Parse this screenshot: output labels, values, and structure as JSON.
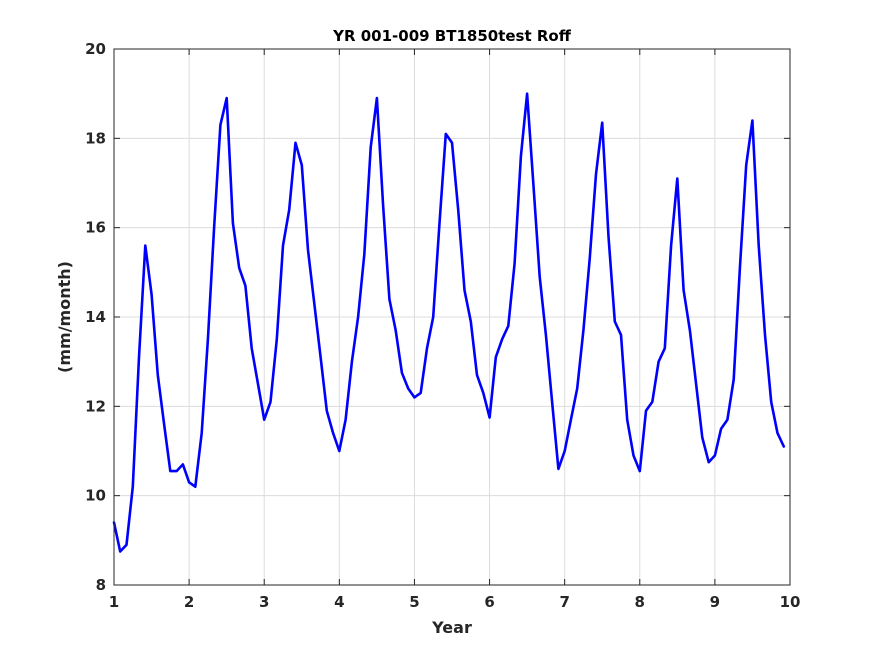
{
  "chart_data": {
    "type": "line",
    "title": "YR 001-009 BT1850test Roff",
    "xlabel": "Year",
    "ylabel": "(mm/month)",
    "xlim": [
      1,
      10
    ],
    "ylim": [
      8,
      20
    ],
    "xticks": [
      1,
      2,
      3,
      4,
      5,
      6,
      7,
      8,
      9,
      10
    ],
    "yticks": [
      8,
      10,
      12,
      14,
      16,
      18,
      20
    ],
    "grid": true,
    "line_color": "#0000ff",
    "series": [
      {
        "x": [
          1.0,
          1.083,
          1.167,
          1.25,
          1.333,
          1.417,
          1.5,
          1.583,
          1.667,
          1.75,
          1.833,
          1.917,
          2.0,
          2.083,
          2.167,
          2.25,
          2.333,
          2.417,
          2.5,
          2.583,
          2.667,
          2.75,
          2.833,
          2.917,
          3.0,
          3.083,
          3.167,
          3.25,
          3.333,
          3.417,
          3.5,
          3.583,
          3.667,
          3.75,
          3.833,
          3.917,
          4.0,
          4.083,
          4.167,
          4.25,
          4.333,
          4.417,
          4.5,
          4.583,
          4.667,
          4.75,
          4.833,
          4.917,
          5.0,
          5.083,
          5.167,
          5.25,
          5.333,
          5.417,
          5.5,
          5.583,
          5.667,
          5.75,
          5.833,
          5.917,
          6.0,
          6.083,
          6.167,
          6.25,
          6.333,
          6.417,
          6.5,
          6.583,
          6.667,
          6.75,
          6.833,
          6.917,
          7.0,
          7.083,
          7.167,
          7.25,
          7.333,
          7.417,
          7.5,
          7.583,
          7.667,
          7.75,
          7.833,
          7.917,
          8.0,
          8.083,
          8.167,
          8.25,
          8.333,
          8.417,
          8.5,
          8.583,
          8.667,
          8.75,
          8.833,
          8.917,
          9.0,
          9.083,
          9.167,
          9.25,
          9.333,
          9.417,
          9.5,
          9.583,
          9.667,
          9.75,
          9.833,
          9.917
        ],
        "y": [
          9.4,
          8.75,
          8.9,
          10.2,
          13.1,
          15.6,
          14.5,
          12.7,
          11.6,
          10.55,
          10.55,
          10.7,
          10.3,
          10.2,
          11.4,
          13.5,
          16.0,
          18.3,
          18.9,
          16.1,
          15.1,
          14.7,
          13.3,
          12.5,
          11.7,
          12.1,
          13.5,
          15.6,
          16.4,
          17.9,
          17.4,
          15.5,
          14.3,
          13.1,
          11.9,
          11.4,
          11.0,
          11.7,
          13.0,
          14.0,
          15.4,
          17.8,
          18.9,
          16.5,
          14.4,
          13.7,
          12.75,
          12.4,
          12.2,
          12.3,
          13.3,
          14.0,
          16.1,
          18.1,
          17.9,
          16.4,
          14.6,
          13.9,
          12.7,
          12.3,
          11.75,
          13.1,
          13.5,
          13.8,
          15.2,
          17.6,
          19.0,
          17.0,
          14.9,
          13.6,
          12.1,
          10.6,
          11.0,
          11.7,
          12.4,
          13.7,
          15.3,
          17.2,
          18.35,
          15.8,
          13.9,
          13.6,
          11.7,
          10.9,
          10.55,
          11.9,
          12.1,
          13.0,
          13.3,
          15.6,
          17.1,
          14.6,
          13.7,
          12.5,
          11.3,
          10.75,
          10.9,
          11.5,
          11.7,
          12.6,
          15.1,
          17.4,
          18.4,
          15.6,
          13.6,
          12.1,
          11.4,
          11.1
        ]
      }
    ]
  }
}
